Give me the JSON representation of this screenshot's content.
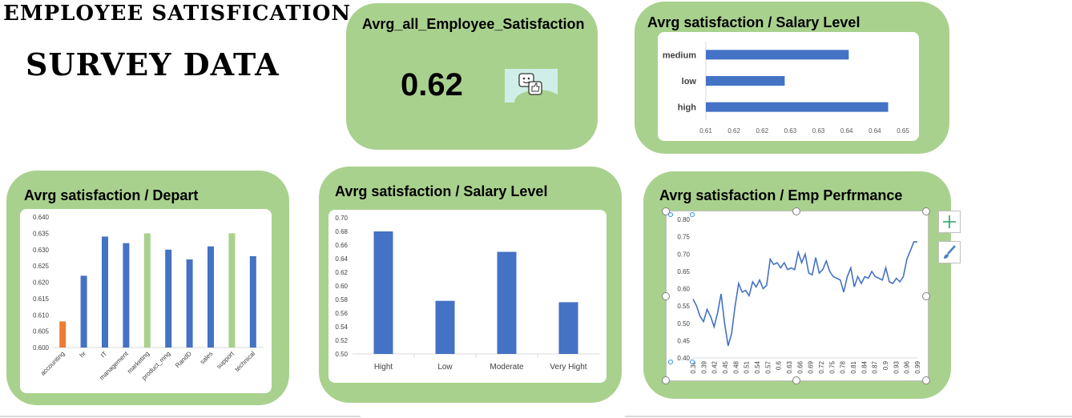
{
  "header": {
    "line1": "EMPLOYEE SATISFICATION",
    "line2": "SURVEY DATA"
  },
  "kpi": {
    "title": "Avrg_all_Employee_Satisfaction",
    "value": "0.62",
    "icon": "feedback-thumbs-up-icon"
  },
  "colors": {
    "card": "#a9d18e",
    "bar": "#4472c4",
    "highlight_orange": "#ed7d31",
    "highlight_green": "#a9d18e"
  },
  "chart_data": [
    {
      "id": "salary_h",
      "type": "bar",
      "orientation": "horizontal",
      "title": "Avrg satisfaction / Salary Level",
      "categories": [
        "medium",
        "low",
        "high"
      ],
      "values": [
        0.639,
        0.626,
        0.647
      ],
      "xlim": [
        0.61,
        0.65
      ],
      "xticks": [
        "0.61",
        "0.62",
        "0.62",
        "0.63",
        "0.63",
        "0.64",
        "0.64",
        "0.65"
      ]
    },
    {
      "id": "depart",
      "type": "bar",
      "title": "Avrg satisfaction / Depart",
      "categories": [
        "accounting",
        "hr",
        "IT",
        "management",
        "marketing",
        "product_mng",
        "RandD",
        "sales",
        "support",
        "technical"
      ],
      "values": [
        0.608,
        0.622,
        0.634,
        0.632,
        0.635,
        0.63,
        0.627,
        0.631,
        0.635,
        0.628
      ],
      "bar_colors": [
        "#ed7d31",
        "#4472c4",
        "#4472c4",
        "#4472c4",
        "#a9d18e",
        "#4472c4",
        "#4472c4",
        "#4472c4",
        "#a9d18e",
        "#4472c4"
      ],
      "ylim": [
        0.6,
        0.64
      ],
      "yticks": [
        "0.600",
        "0.605",
        "0.610",
        "0.615",
        "0.620",
        "0.625",
        "0.630",
        "0.635",
        "0.640"
      ]
    },
    {
      "id": "salary_v",
      "type": "bar",
      "title": "Avrg satisfaction / Salary Level",
      "categories": [
        "Hight",
        "Low",
        "Moderate",
        "Very Hight"
      ],
      "values": [
        0.68,
        0.578,
        0.65,
        0.576
      ],
      "ylim": [
        0.5,
        0.7
      ],
      "yticks": [
        "0.50",
        "0.52",
        "0.54",
        "0.56",
        "0.58",
        "0.60",
        "0.62",
        "0.64",
        "0.66",
        "0.68",
        "0.70"
      ]
    },
    {
      "id": "perf",
      "type": "line",
      "title": "Avrg satisfaction / Emp Perfrmance",
      "x": [
        0.36,
        0.37,
        0.38,
        0.39,
        0.4,
        0.41,
        0.42,
        0.43,
        0.44,
        0.45,
        0.46,
        0.47,
        0.48,
        0.49,
        0.5,
        0.51,
        0.52,
        0.53,
        0.54,
        0.55,
        0.56,
        0.57,
        0.58,
        0.59,
        0.6,
        0.61,
        0.62,
        0.63,
        0.64,
        0.65,
        0.66,
        0.67,
        0.68,
        0.69,
        0.7,
        0.71,
        0.72,
        0.73,
        0.74,
        0.75,
        0.76,
        0.77,
        0.78,
        0.79,
        0.8,
        0.81,
        0.82,
        0.83,
        0.84,
        0.85,
        0.86,
        0.87,
        0.88,
        0.89,
        0.9,
        0.91,
        0.92,
        0.93,
        0.94,
        0.95,
        0.96,
        0.97,
        0.98,
        0.99,
        1.0
      ],
      "values": [
        0.57,
        0.55,
        0.52,
        0.505,
        0.54,
        0.52,
        0.49,
        0.53,
        0.585,
        0.5,
        0.435,
        0.47,
        0.55,
        0.615,
        0.59,
        0.595,
        0.58,
        0.62,
        0.605,
        0.625,
        0.6,
        0.61,
        0.685,
        0.67,
        0.675,
        0.66,
        0.675,
        0.655,
        0.66,
        0.655,
        0.705,
        0.675,
        0.7,
        0.645,
        0.64,
        0.69,
        0.645,
        0.655,
        0.68,
        0.65,
        0.635,
        0.63,
        0.625,
        0.59,
        0.635,
        0.66,
        0.605,
        0.635,
        0.615,
        0.635,
        0.63,
        0.65,
        0.635,
        0.63,
        0.625,
        0.66,
        0.62,
        0.615,
        0.63,
        0.62,
        0.635,
        0.685,
        0.71,
        0.735,
        0.735
      ],
      "xticks": [
        "0.36",
        "0.39",
        "0.42",
        "0.45",
        "0.48",
        "0.51",
        "0.54",
        "0.57",
        "0.6",
        "0.63",
        "0.66",
        "0.69",
        "0.72",
        "0.75",
        "0.78",
        "0.81",
        "0.84",
        "0.87",
        "0.9",
        "0.93",
        "0.96",
        "0.99"
      ],
      "ylim": [
        0.4,
        0.8
      ],
      "yticks": [
        "0.40",
        "0.45",
        "0.50",
        "0.55",
        "0.60",
        "0.65",
        "0.70",
        "0.75",
        "0.80"
      ]
    }
  ]
}
